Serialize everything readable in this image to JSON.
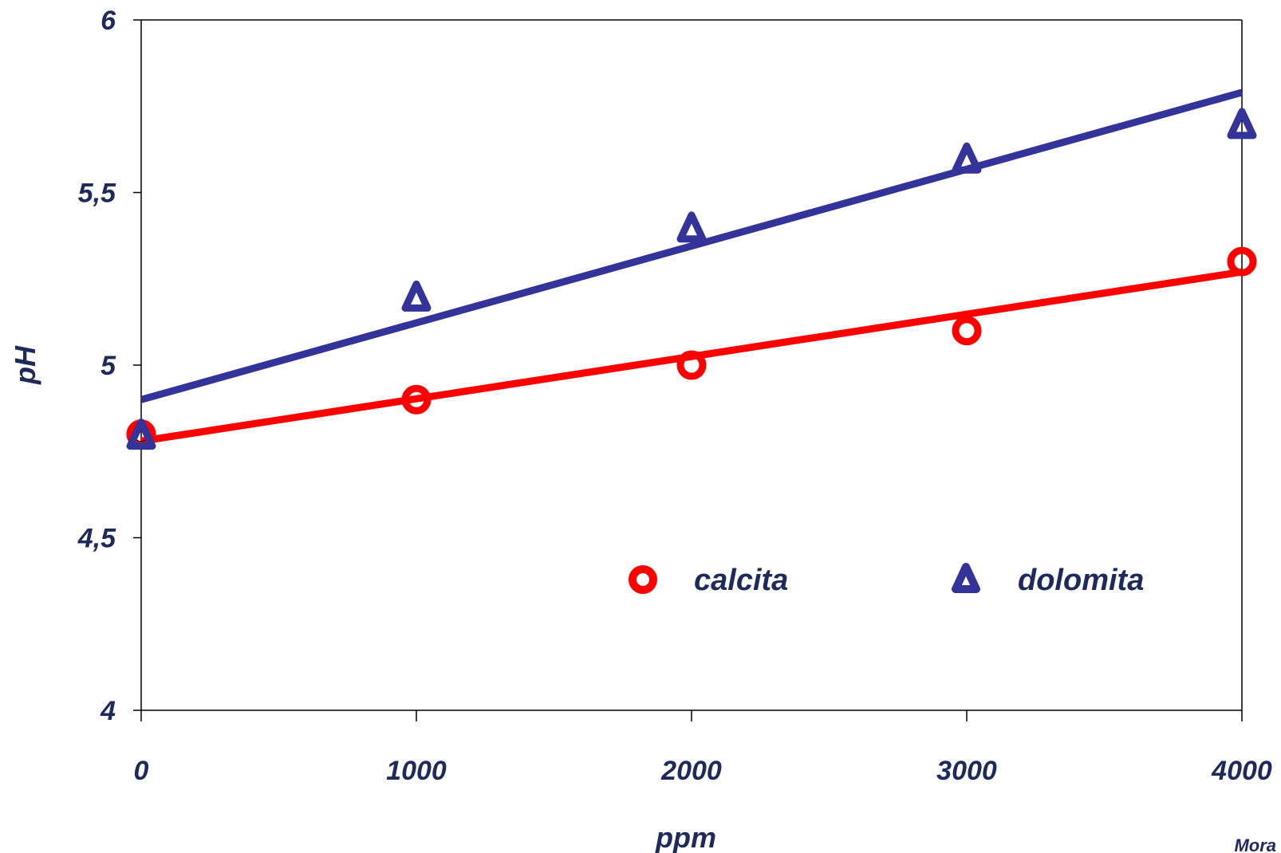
{
  "chart_data": {
    "type": "scatter",
    "title": "",
    "xlabel": "ppm",
    "ylabel": "pH",
    "xlim": [
      0,
      4000
    ],
    "ylim": [
      4,
      6
    ],
    "x_ticks": [
      0,
      1000,
      2000,
      3000,
      4000
    ],
    "x_tick_labels": [
      "0",
      "1000",
      "2000",
      "3000",
      "4000"
    ],
    "y_ticks": [
      4,
      4.5,
      5,
      5.5,
      6
    ],
    "y_tick_labels": [
      "4",
      "4,5",
      "5",
      "5,5",
      "6"
    ],
    "grid": false,
    "legend_position": "bottom-right",
    "series": [
      {
        "name": "calcita",
        "marker": "circle",
        "color": "#ff0000",
        "x": [
          0,
          1000,
          2000,
          3000,
          4000
        ],
        "y": [
          4.8,
          4.9,
          5.0,
          5.1,
          5.3
        ],
        "trendline": {
          "x": [
            0,
            4000
          ],
          "y": [
            4.78,
            5.27
          ]
        }
      },
      {
        "name": "dolomita",
        "marker": "triangle",
        "color": "#333399",
        "x": [
          0,
          1000,
          2000,
          3000,
          4000
        ],
        "y": [
          4.8,
          5.2,
          5.4,
          5.6,
          5.7
        ],
        "trendline": {
          "x": [
            0,
            4000
          ],
          "y": [
            4.9,
            5.79
          ]
        }
      }
    ],
    "annotations": [
      "Mora"
    ]
  }
}
